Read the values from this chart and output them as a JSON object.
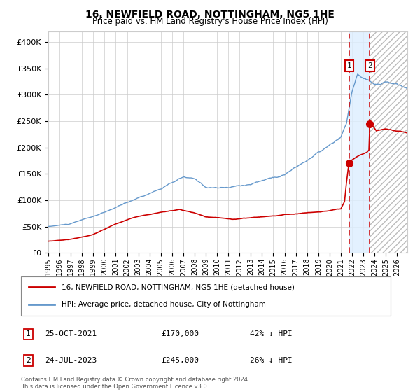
{
  "title": "16, NEWFIELD ROAD, NOTTINGHAM, NG5 1HE",
  "subtitle": "Price paid vs. HM Land Registry's House Price Index (HPI)",
  "hpi_color": "#6699cc",
  "price_color": "#cc0000",
  "marker_color": "#cc0000",
  "vline_color": "#cc0000",
  "shade_color": "#ddeeff",
  "hatch_color": "#aaaaaa",
  "ylim": [
    0,
    420000
  ],
  "yticks": [
    0,
    50000,
    100000,
    150000,
    200000,
    250000,
    300000,
    350000,
    400000
  ],
  "ytick_labels": [
    "£0",
    "£50K",
    "£100K",
    "£150K",
    "£200K",
    "£250K",
    "£300K",
    "£350K",
    "£400K"
  ],
  "legend_line1": "16, NEWFIELD ROAD, NOTTINGHAM, NG5 1HE (detached house)",
  "legend_line2": "HPI: Average price, detached house, City of Nottingham",
  "marker1_date_idx": 321,
  "marker1_price": 170000,
  "marker1_label": "25-OCT-2021",
  "marker1_text": "£170,000",
  "marker1_pct": "42% ↓ HPI",
  "marker2_date_idx": 343,
  "marker2_price": 245000,
  "marker2_label": "24-JUL-2023",
  "marker2_text": "£245,000",
  "marker2_pct": "26% ↓ HPI",
  "footer": "Contains HM Land Registry data © Crown copyright and database right 2024.\nThis data is licensed under the Open Government Licence v3.0.",
  "bg_color": "#ffffff",
  "grid_color": "#cccccc"
}
